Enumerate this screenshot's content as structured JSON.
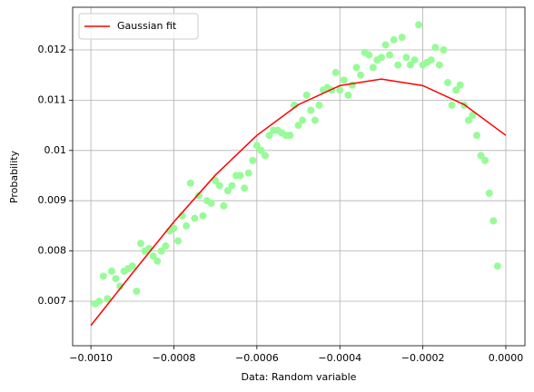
{
  "chart_data": {
    "type": "scatter",
    "xlabel": "Data: Random variable",
    "ylabel": "Probability",
    "xlim": [
      -0.001044,
      4.6e-05
    ],
    "ylim": [
      0.006116,
      0.012848
    ],
    "xticks": [
      {
        "value": -0.001,
        "label": "−0.0010"
      },
      {
        "value": -0.0008,
        "label": "−0.0008"
      },
      {
        "value": -0.0006,
        "label": "−0.0006"
      },
      {
        "value": -0.0004,
        "label": "−0.0004"
      },
      {
        "value": -0.0002,
        "label": "−0.0002"
      },
      {
        "value": 0,
        "label": "0.0000"
      }
    ],
    "yticks": [
      0.007,
      0.008,
      0.009,
      0.01,
      0.011,
      0.012
    ],
    "grid": true,
    "legend": "upper left",
    "series": [
      {
        "type": "scatter",
        "color": "#98fb98",
        "x": [
          -0.00099,
          -0.00098,
          -0.00097,
          -0.00096,
          -0.00095,
          -0.00094,
          -0.00093,
          -0.00092,
          -0.00091,
          -0.0009,
          -0.00089,
          -0.00088,
          -0.00087,
          -0.00086,
          -0.00085,
          -0.00084,
          -0.00083,
          -0.00082,
          -0.00081,
          -0.0008,
          -0.00079,
          -0.00078,
          -0.00077,
          -0.00076,
          -0.00075,
          -0.00074,
          -0.00073,
          -0.00072,
          -0.00071,
          -0.0007,
          -0.00069,
          -0.00068,
          -0.00067,
          -0.00066,
          -0.00065,
          -0.00064,
          -0.00063,
          -0.00062,
          -0.00061,
          -0.0006,
          -0.00059,
          -0.00058,
          -0.00057,
          -0.00056,
          -0.00055,
          -0.00054,
          -0.00053,
          -0.00052,
          -0.00051,
          -0.0005,
          -0.00049,
          -0.00048,
          -0.00047,
          -0.00046,
          -0.00045,
          -0.00044,
          -0.00043,
          -0.00042,
          -0.00041,
          -0.0004,
          -0.00039,
          -0.00038,
          -0.00037,
          -0.00036,
          -0.00035,
          -0.00034,
          -0.00033,
          -0.00032,
          -0.00031,
          -0.0003,
          -0.00029,
          -0.00028,
          -0.00027,
          -0.00026,
          -0.00025,
          -0.00024,
          -0.00023,
          -0.00022,
          -0.00021,
          -0.0002,
          -0.00019,
          -0.00018,
          -0.00017,
          -0.00016,
          -0.00015,
          -0.00014,
          -0.00013,
          -0.00012,
          -0.00011,
          -0.0001,
          -9e-05,
          -8e-05,
          -7e-05,
          -6e-05,
          -5e-05,
          -4e-05,
          -3e-05,
          -2e-05
        ],
        "values": [
          0.00695,
          0.007,
          0.0075,
          0.00705,
          0.0076,
          0.00745,
          0.0073,
          0.0076,
          0.00765,
          0.0077,
          0.0072,
          0.00815,
          0.008,
          0.00805,
          0.0079,
          0.0078,
          0.008,
          0.0081,
          0.0084,
          0.00845,
          0.0082,
          0.0087,
          0.0085,
          0.00935,
          0.00865,
          0.0091,
          0.0087,
          0.009,
          0.00895,
          0.0094,
          0.0093,
          0.0089,
          0.0092,
          0.0093,
          0.0095,
          0.0095,
          0.00925,
          0.00955,
          0.0098,
          0.0101,
          0.01,
          0.0099,
          0.0103,
          0.0104,
          0.0104,
          0.01035,
          0.0103,
          0.0103,
          0.0109,
          0.0105,
          0.0106,
          0.0111,
          0.0108,
          0.0106,
          0.0109,
          0.0112,
          0.01125,
          0.0112,
          0.01155,
          0.0112,
          0.0114,
          0.0111,
          0.0113,
          0.01165,
          0.0115,
          0.01195,
          0.0119,
          0.01165,
          0.0118,
          0.01185,
          0.0121,
          0.0119,
          0.0122,
          0.0117,
          0.01225,
          0.01185,
          0.0117,
          0.0118,
          0.0125,
          0.0117,
          0.01175,
          0.0118,
          0.01205,
          0.0117,
          0.012,
          0.01135,
          0.0109,
          0.0112,
          0.0113,
          0.0109,
          0.0106,
          0.0107,
          0.0103,
          0.0099,
          0.0098,
          0.00915,
          0.0086,
          0.0077
        ]
      },
      {
        "type": "line",
        "name": "Gaussian fit",
        "color": "#ff0000",
        "x": [
          -0.001,
          -0.0009,
          -0.0008,
          -0.0007,
          -0.0006,
          -0.0005,
          -0.0004,
          -0.0003,
          -0.0002,
          -0.0001,
          0
        ],
        "values": [
          0.00652,
          0.00756,
          0.00858,
          0.00951,
          0.0103,
          0.01091,
          0.01129,
          0.01142,
          0.01129,
          0.01091,
          0.0103
        ]
      }
    ]
  }
}
